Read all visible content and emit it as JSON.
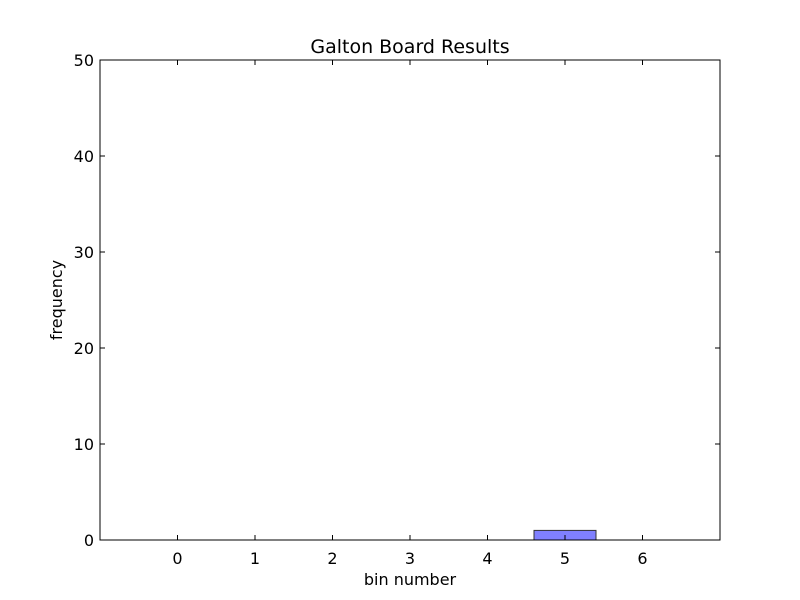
{
  "chart_data": {
    "type": "bar",
    "title": "Galton Board Results",
    "xlabel": "bin number",
    "ylabel": "frequency",
    "categories": [
      "0",
      "1",
      "2",
      "3",
      "4",
      "5",
      "6"
    ],
    "x": [
      0,
      1,
      2,
      3,
      4,
      5,
      6
    ],
    "values": [
      0,
      0,
      0,
      0,
      0,
      1,
      0
    ],
    "xlim": [
      -1,
      7
    ],
    "ylim": [
      0,
      50
    ],
    "yticks": [
      0,
      10,
      20,
      30,
      40,
      50
    ],
    "grid": false,
    "bar_color": "#8080ff",
    "bar_edge_color": "#333333",
    "bar_alpha": 0.5
  }
}
